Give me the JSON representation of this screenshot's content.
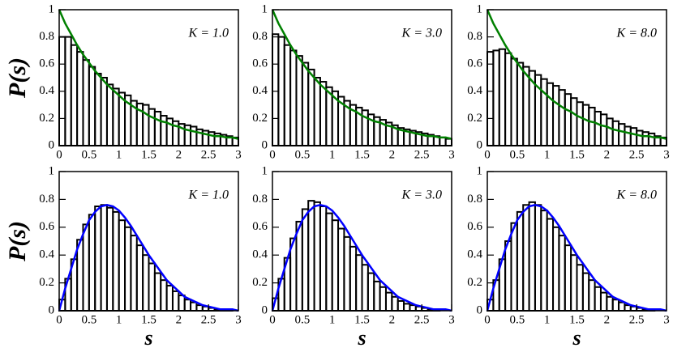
{
  "chart_data": [
    {
      "type": "histogram",
      "annotation": "K = 1.0",
      "ylabel": "P(s)",
      "bins": [
        0,
        0.1,
        0.2,
        0.3,
        0.4,
        0.5,
        0.6,
        0.7,
        0.8,
        0.9,
        1,
        1.1,
        1.2,
        1.3,
        1.4,
        1.5,
        1.6,
        1.7,
        1.8,
        1.9,
        2,
        2.1,
        2.2,
        2.3,
        2.4,
        2.5,
        2.6,
        2.7,
        2.8,
        2.9,
        3
      ],
      "values": [
        0.8,
        0.8,
        0.74,
        0.69,
        0.63,
        0.58,
        0.53,
        0.5,
        0.45,
        0.42,
        0.39,
        0.37,
        0.33,
        0.31,
        0.3,
        0.27,
        0.25,
        0.22,
        0.2,
        0.18,
        0.16,
        0.15,
        0.14,
        0.12,
        0.11,
        0.1,
        0.09,
        0.08,
        0.07,
        0.06
      ],
      "color": "#000000",
      "series": [
        {
          "color": "#008000",
          "x": [
            0,
            0.1,
            0.2,
            0.3,
            0.4,
            0.5,
            0.6,
            0.7,
            0.8,
            0.9,
            1,
            1.1,
            1.2,
            1.3,
            1.4,
            1.5,
            1.6,
            1.7,
            1.8,
            1.9,
            2,
            2.1,
            2.2,
            2.3,
            2.4,
            2.5,
            2.6,
            2.7,
            2.8,
            2.9,
            3
          ],
          "values": [
            1,
            0.9,
            0.82,
            0.74,
            0.67,
            0.61,
            0.55,
            0.5,
            0.45,
            0.41,
            0.37,
            0.33,
            0.3,
            0.27,
            0.25,
            0.22,
            0.2,
            0.18,
            0.17,
            0.15,
            0.14,
            0.12,
            0.11,
            0.1,
            0.09,
            0.08,
            0.07,
            0.07,
            0.06,
            0.06,
            0.05
          ]
        }
      ],
      "xlim": [
        0,
        3
      ],
      "ylim": [
        0,
        1
      ],
      "xticks": [
        0,
        0.5,
        1,
        1.5,
        2,
        2.5,
        3
      ],
      "yticks": [
        0,
        0.2,
        0.4,
        0.6,
        0.8,
        1
      ]
    },
    {
      "type": "histogram",
      "annotation": "K = 3.0",
      "bins": [
        0,
        0.1,
        0.2,
        0.3,
        0.4,
        0.5,
        0.6,
        0.7,
        0.8,
        0.9,
        1,
        1.1,
        1.2,
        1.3,
        1.4,
        1.5,
        1.6,
        1.7,
        1.8,
        1.9,
        2,
        2.1,
        2.2,
        2.3,
        2.4,
        2.5,
        2.6,
        2.7,
        2.8,
        2.9,
        3
      ],
      "values": [
        0.82,
        0.8,
        0.74,
        0.7,
        0.66,
        0.61,
        0.56,
        0.5,
        0.47,
        0.43,
        0.4,
        0.36,
        0.33,
        0.3,
        0.28,
        0.26,
        0.23,
        0.21,
        0.19,
        0.17,
        0.15,
        0.13,
        0.12,
        0.11,
        0.1,
        0.09,
        0.08,
        0.07,
        0.06,
        0.05
      ],
      "color": "#000000",
      "series": [
        {
          "color": "#008000",
          "x": [
            0,
            0.1,
            0.2,
            0.3,
            0.4,
            0.5,
            0.6,
            0.7,
            0.8,
            0.9,
            1,
            1.1,
            1.2,
            1.3,
            1.4,
            1.5,
            1.6,
            1.7,
            1.8,
            1.9,
            2,
            2.1,
            2.2,
            2.3,
            2.4,
            2.5,
            2.6,
            2.7,
            2.8,
            2.9,
            3
          ],
          "values": [
            1,
            0.9,
            0.82,
            0.74,
            0.67,
            0.61,
            0.55,
            0.5,
            0.45,
            0.41,
            0.37,
            0.33,
            0.3,
            0.27,
            0.25,
            0.22,
            0.2,
            0.18,
            0.17,
            0.15,
            0.14,
            0.12,
            0.11,
            0.1,
            0.09,
            0.08,
            0.07,
            0.07,
            0.06,
            0.06,
            0.05
          ]
        }
      ],
      "xlim": [
        0,
        3
      ],
      "ylim": [
        0,
        1
      ],
      "xticks": [
        0,
        0.5,
        1,
        1.5,
        2,
        2.5,
        3
      ],
      "yticks": [
        0,
        0.2,
        0.4,
        0.6,
        0.8,
        1
      ]
    },
    {
      "type": "histogram",
      "annotation": "K = 8.0",
      "bins": [
        0,
        0.1,
        0.2,
        0.3,
        0.4,
        0.5,
        0.6,
        0.7,
        0.8,
        0.9,
        1,
        1.1,
        1.2,
        1.3,
        1.4,
        1.5,
        1.6,
        1.7,
        1.8,
        1.9,
        2,
        2.1,
        2.2,
        2.3,
        2.4,
        2.5,
        2.6,
        2.7,
        2.8,
        2.9,
        3
      ],
      "values": [
        0.69,
        0.7,
        0.71,
        0.68,
        0.64,
        0.61,
        0.58,
        0.55,
        0.52,
        0.49,
        0.46,
        0.44,
        0.41,
        0.38,
        0.35,
        0.32,
        0.3,
        0.28,
        0.25,
        0.23,
        0.2,
        0.18,
        0.16,
        0.14,
        0.13,
        0.11,
        0.1,
        0.09,
        0.07,
        0.06
      ],
      "color": "#000000",
      "series": [
        {
          "color": "#008000",
          "x": [
            0,
            0.1,
            0.2,
            0.3,
            0.4,
            0.5,
            0.6,
            0.7,
            0.8,
            0.9,
            1,
            1.1,
            1.2,
            1.3,
            1.4,
            1.5,
            1.6,
            1.7,
            1.8,
            1.9,
            2,
            2.1,
            2.2,
            2.3,
            2.4,
            2.5,
            2.6,
            2.7,
            2.8,
            2.9,
            3
          ],
          "values": [
            1,
            0.9,
            0.82,
            0.74,
            0.67,
            0.61,
            0.55,
            0.5,
            0.45,
            0.41,
            0.37,
            0.33,
            0.3,
            0.27,
            0.25,
            0.22,
            0.2,
            0.18,
            0.17,
            0.15,
            0.14,
            0.12,
            0.11,
            0.1,
            0.09,
            0.08,
            0.07,
            0.07,
            0.06,
            0.06,
            0.05
          ]
        }
      ],
      "xlim": [
        0,
        3
      ],
      "ylim": [
        0,
        1
      ],
      "xticks": [
        0,
        0.5,
        1,
        1.5,
        2,
        2.5,
        3
      ],
      "yticks": [
        0,
        0.2,
        0.4,
        0.6,
        0.8,
        1
      ]
    },
    {
      "type": "histogram",
      "annotation": "K = 1.0",
      "ylabel": "P(s)",
      "xlabel": "s",
      "bins": [
        0,
        0.1,
        0.2,
        0.3,
        0.4,
        0.5,
        0.6,
        0.7,
        0.8,
        0.9,
        1,
        1.1,
        1.2,
        1.3,
        1.4,
        1.5,
        1.6,
        1.7,
        1.8,
        1.9,
        2,
        2.1,
        2.2,
        2.3,
        2.4,
        2.5,
        2.6,
        2.7,
        2.8,
        2.9,
        3
      ],
      "values": [
        0.08,
        0.23,
        0.37,
        0.51,
        0.62,
        0.69,
        0.75,
        0.76,
        0.74,
        0.71,
        0.65,
        0.6,
        0.54,
        0.47,
        0.4,
        0.34,
        0.27,
        0.22,
        0.18,
        0.14,
        0.11,
        0.08,
        0.06,
        0.04,
        0.03,
        0.02,
        0.01,
        0.01,
        0.01,
        0.0
      ],
      "color": "#000000",
      "series": [
        {
          "color": "#0000ff",
          "x": [
            0,
            0.1,
            0.2,
            0.3,
            0.4,
            0.5,
            0.6,
            0.7,
            0.8,
            0.9,
            1,
            1.1,
            1.2,
            1.3,
            1.4,
            1.5,
            1.6,
            1.7,
            1.8,
            1.9,
            2,
            2.1,
            2.2,
            2.3,
            2.4,
            2.5,
            2.6,
            2.7,
            2.8,
            2.9,
            3
          ],
          "values": [
            0,
            0.16,
            0.3,
            0.44,
            0.55,
            0.65,
            0.71,
            0.75,
            0.76,
            0.75,
            0.72,
            0.67,
            0.61,
            0.54,
            0.47,
            0.4,
            0.34,
            0.28,
            0.22,
            0.18,
            0.14,
            0.1,
            0.08,
            0.06,
            0.04,
            0.03,
            0.02,
            0.01,
            0.01,
            0.01,
            0
          ]
        }
      ],
      "xlim": [
        0,
        3
      ],
      "ylim": [
        0,
        1
      ],
      "xticks": [
        0,
        0.5,
        1,
        1.5,
        2,
        2.5,
        3
      ],
      "yticks": [
        0,
        0.2,
        0.4,
        0.6,
        0.8,
        1
      ]
    },
    {
      "type": "histogram",
      "annotation": "K = 3.0",
      "xlabel": "s",
      "bins": [
        0,
        0.1,
        0.2,
        0.3,
        0.4,
        0.5,
        0.6,
        0.7,
        0.8,
        0.9,
        1,
        1.1,
        1.2,
        1.3,
        1.4,
        1.5,
        1.6,
        1.7,
        1.8,
        1.9,
        2,
        2.1,
        2.2,
        2.3,
        2.4,
        2.5,
        2.6,
        2.7,
        2.8,
        2.9,
        3
      ],
      "values": [
        0.09,
        0.23,
        0.38,
        0.52,
        0.64,
        0.73,
        0.79,
        0.78,
        0.75,
        0.7,
        0.65,
        0.59,
        0.53,
        0.46,
        0.4,
        0.33,
        0.27,
        0.21,
        0.17,
        0.13,
        0.1,
        0.07,
        0.05,
        0.04,
        0.03,
        0.02,
        0.01,
        0.01,
        0.0,
        0.0
      ],
      "color": "#000000",
      "series": [
        {
          "color": "#0000ff",
          "x": [
            0,
            0.1,
            0.2,
            0.3,
            0.4,
            0.5,
            0.6,
            0.7,
            0.8,
            0.9,
            1,
            1.1,
            1.2,
            1.3,
            1.4,
            1.5,
            1.6,
            1.7,
            1.8,
            1.9,
            2,
            2.1,
            2.2,
            2.3,
            2.4,
            2.5,
            2.6,
            2.7,
            2.8,
            2.9,
            3
          ],
          "values": [
            0,
            0.16,
            0.3,
            0.44,
            0.55,
            0.65,
            0.71,
            0.75,
            0.76,
            0.75,
            0.72,
            0.67,
            0.61,
            0.54,
            0.47,
            0.4,
            0.34,
            0.28,
            0.22,
            0.18,
            0.14,
            0.1,
            0.08,
            0.06,
            0.04,
            0.03,
            0.02,
            0.01,
            0.01,
            0.01,
            0
          ]
        }
      ],
      "xlim": [
        0,
        3
      ],
      "ylim": [
        0,
        1
      ],
      "xticks": [
        0,
        0.5,
        1,
        1.5,
        2,
        2.5,
        3
      ],
      "yticks": [
        0,
        0.2,
        0.4,
        0.6,
        0.8,
        1
      ]
    },
    {
      "type": "histogram",
      "annotation": "K = 8.0",
      "xlabel": "s",
      "bins": [
        0,
        0.1,
        0.2,
        0.3,
        0.4,
        0.5,
        0.6,
        0.7,
        0.8,
        0.9,
        1,
        1.1,
        1.2,
        1.3,
        1.4,
        1.5,
        1.6,
        1.7,
        1.8,
        1.9,
        2,
        2.1,
        2.2,
        2.3,
        2.4,
        2.5,
        2.6,
        2.7,
        2.8,
        2.9,
        3
      ],
      "values": [
        0.08,
        0.22,
        0.37,
        0.5,
        0.63,
        0.71,
        0.76,
        0.78,
        0.76,
        0.72,
        0.66,
        0.6,
        0.54,
        0.47,
        0.4,
        0.33,
        0.27,
        0.22,
        0.17,
        0.13,
        0.1,
        0.08,
        0.06,
        0.04,
        0.03,
        0.02,
        0.01,
        0.01,
        0.0,
        0.0
      ],
      "color": "#000000",
      "series": [
        {
          "color": "#0000ff",
          "x": [
            0,
            0.1,
            0.2,
            0.3,
            0.4,
            0.5,
            0.6,
            0.7,
            0.8,
            0.9,
            1,
            1.1,
            1.2,
            1.3,
            1.4,
            1.5,
            1.6,
            1.7,
            1.8,
            1.9,
            2,
            2.1,
            2.2,
            2.3,
            2.4,
            2.5,
            2.6,
            2.7,
            2.8,
            2.9,
            3
          ],
          "values": [
            0,
            0.16,
            0.3,
            0.44,
            0.55,
            0.65,
            0.71,
            0.75,
            0.76,
            0.75,
            0.72,
            0.67,
            0.61,
            0.54,
            0.47,
            0.4,
            0.34,
            0.28,
            0.22,
            0.18,
            0.14,
            0.1,
            0.08,
            0.06,
            0.04,
            0.03,
            0.02,
            0.01,
            0.01,
            0.01,
            0
          ]
        }
      ],
      "xlim": [
        0,
        3
      ],
      "ylim": [
        0,
        1
      ],
      "xticks": [
        0,
        0.5,
        1,
        1.5,
        2,
        2.5,
        3
      ],
      "yticks": [
        0,
        0.2,
        0.4,
        0.6,
        0.8,
        1
      ]
    }
  ]
}
